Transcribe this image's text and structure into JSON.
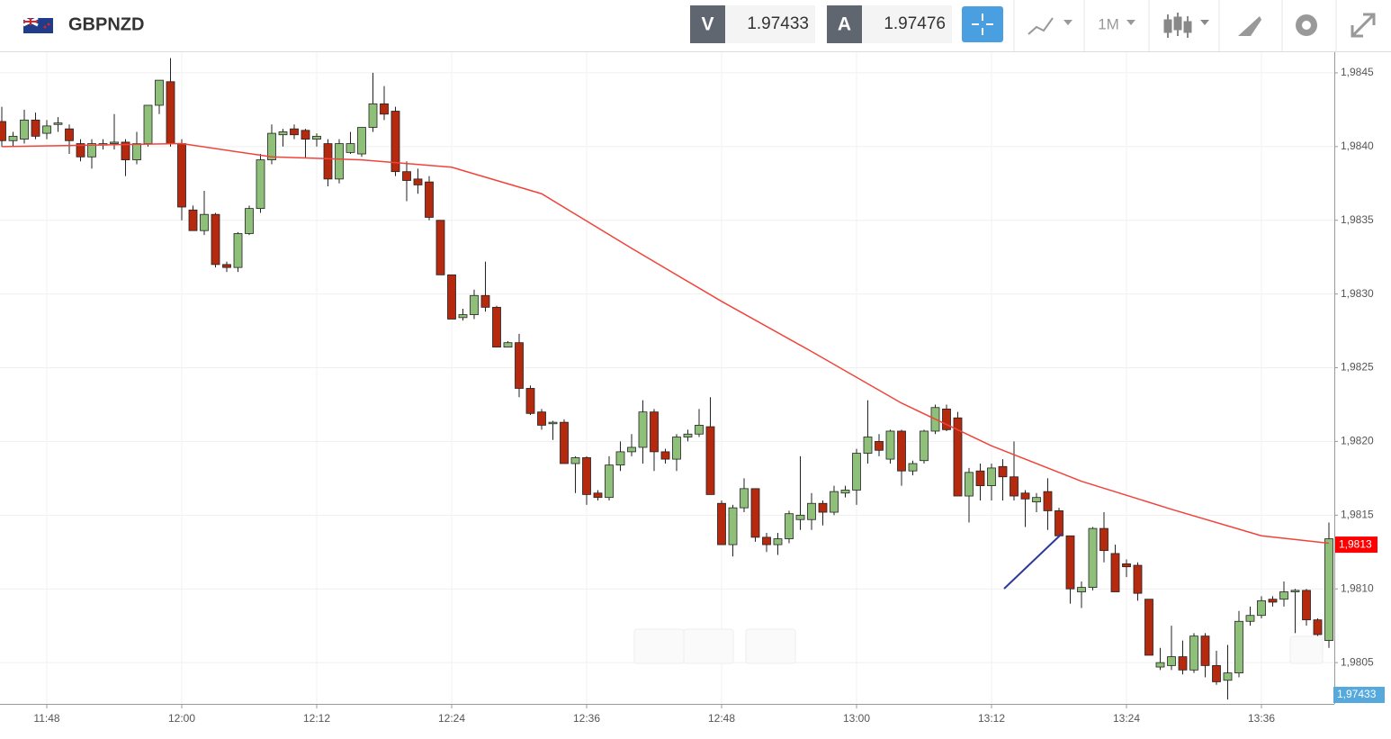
{
  "header": {
    "symbol": "GBPNZD",
    "sell_label": "V",
    "sell_price": "1.97433",
    "buy_label": "A",
    "buy_price": "1.97476",
    "timeframe": "1M"
  },
  "chart_data": {
    "type": "candlestick",
    "categories": [
      null,
      null,
      null,
      null,
      "11:48",
      null,
      null,
      null,
      null,
      null,
      null,
      null,
      null,
      null,
      null,
      null,
      "12:00",
      null,
      null,
      null,
      null,
      null,
      null,
      null,
      null,
      null,
      null,
      null,
      "12:12",
      null,
      null,
      null,
      null,
      null,
      null,
      null,
      null,
      null,
      null,
      null,
      "12:24",
      null,
      null,
      null,
      null,
      null,
      null,
      null,
      null,
      null,
      null,
      null,
      "12:36",
      null,
      null,
      null,
      null,
      null,
      null,
      null,
      null,
      null,
      null,
      null,
      "12:48",
      null,
      null,
      null,
      null,
      null,
      null,
      null,
      null,
      null,
      null,
      null,
      "13:00",
      null,
      null,
      null,
      null,
      null,
      null,
      null,
      null,
      null,
      null,
      null,
      "13:12",
      null,
      null,
      null,
      null,
      null,
      null,
      null,
      null,
      null,
      null,
      null,
      "13:24",
      null,
      null,
      null,
      null,
      null,
      null,
      null,
      null,
      null,
      null,
      null,
      "13:36",
      null,
      null,
      null,
      null,
      null,
      null
    ],
    "open": [
      1.98417,
      1.98404,
      1.98405,
      1.98418,
      1.98409,
      1.98415,
      1.98412,
      1.98402,
      1.98393,
      1.98401,
      1.98402,
      1.98403,
      1.98391,
      1.98402,
      1.98428,
      1.98444,
      1.98402,
      1.98357,
      1.98343,
      1.98354,
      1.9832,
      1.98318,
      1.98341,
      1.98358,
      1.98391,
      1.98408,
      1.98412,
      1.98411,
      1.98405,
      1.98402,
      1.98378,
      1.98396,
      1.98395,
      1.98413,
      1.98429,
      1.98424,
      1.98383,
      1.98378,
      1.98376,
      1.9835,
      1.98313,
      1.98284,
      1.98286,
      1.98299,
      1.98291,
      1.98264,
      1.98267,
      1.98236,
      1.9822,
      1.98212,
      1.98213,
      1.98185,
      1.98189,
      1.98165,
      1.98162,
      1.98184,
      1.98193,
      1.98196,
      1.9822,
      1.98193,
      1.98188,
      1.98203,
      1.98205,
      1.9821,
      1.98158,
      1.9813,
      1.98155,
      1.98168,
      1.98135,
      1.9813,
      1.98134,
      1.98147,
      1.98147,
      1.98158,
      1.98152,
      1.98165,
      1.98167,
      1.98192,
      1.982,
      1.98188,
      1.98207,
      1.9818,
      1.98187,
      1.98207,
      1.98222,
      1.98216,
      1.98163,
      1.9818,
      1.9817,
      1.98183,
      1.98176,
      1.98165,
      1.98159,
      1.98166,
      1.98153,
      1.98136,
      1.98098,
      1.98101,
      1.98141,
      1.98124,
      1.98117,
      1.98116,
      1.98093,
      1.98047,
      1.98048,
      1.98054,
      1.98045,
      1.98068,
      1.98048,
      1.98038,
      1.98043,
      1.98078,
      1.98082,
      1.98093,
      1.98093,
      1.98098,
      1.98099,
      1.98079,
      1.98065
    ],
    "high": [
      1.98427,
      1.9841,
      1.98425,
      1.98423,
      1.98418,
      1.9842,
      1.98415,
      1.98405,
      1.98405,
      1.98405,
      1.98422,
      1.98405,
      1.9841,
      1.98428,
      1.98445,
      1.9846,
      1.98405,
      1.9836,
      1.9837,
      1.98355,
      1.98322,
      1.98342,
      1.9836,
      1.98395,
      1.98415,
      1.98412,
      1.98415,
      1.98412,
      1.98409,
      1.98405,
      1.98405,
      1.9841,
      1.98413,
      1.9845,
      1.98441,
      1.98427,
      1.9839,
      1.98385,
      1.9838,
      1.9835,
      1.98313,
      1.9829,
      1.98303,
      1.98322,
      1.98292,
      1.98268,
      1.98273,
      1.98238,
      1.98222,
      1.98214,
      1.98215,
      1.9819,
      1.9819,
      1.98167,
      1.9819,
      1.982,
      1.98205,
      1.98228,
      1.98222,
      1.98195,
      1.98205,
      1.98208,
      1.98222,
      1.9823,
      1.9816,
      1.98157,
      1.98175,
      1.98168,
      1.98138,
      1.98138,
      1.98153,
      1.9819,
      1.98165,
      1.9816,
      1.9817,
      1.9817,
      1.98195,
      1.98228,
      1.98205,
      1.98208,
      1.98208,
      1.98187,
      1.98208,
      1.98225,
      1.98225,
      1.9822,
      1.98182,
      1.98185,
      1.98185,
      1.98188,
      1.982,
      1.98167,
      1.98165,
      1.98175,
      1.98155,
      1.98136,
      1.98105,
      1.98142,
      1.98152,
      1.9813,
      1.9812,
      1.98118,
      1.98093,
      1.9806,
      1.98075,
      1.98065,
      1.9807,
      1.9807,
      1.98058,
      1.98062,
      1.98085,
      1.98088,
      1.98095,
      1.98095,
      1.98105,
      1.981,
      1.981,
      1.9808,
      1.98145
    ],
    "low": [
      1.984,
      1.984,
      1.98402,
      1.98405,
      1.98405,
      1.9841,
      1.98395,
      1.9839,
      1.98385,
      1.98398,
      1.98398,
      1.9838,
      1.98388,
      1.984,
      1.98422,
      1.984,
      1.9835,
      1.98343,
      1.9834,
      1.98318,
      1.98315,
      1.98315,
      1.9834,
      1.98355,
      1.98388,
      1.984,
      1.98405,
      1.98392,
      1.984,
      1.98373,
      1.98375,
      1.98395,
      1.98393,
      1.9841,
      1.98418,
      1.9838,
      1.98363,
      1.98368,
      1.9835,
      1.98313,
      1.98283,
      1.98282,
      1.98283,
      1.98288,
      1.98264,
      1.98264,
      1.9823,
      1.98218,
      1.98208,
      1.98201,
      1.98185,
      1.98165,
      1.98157,
      1.9816,
      1.9816,
      1.9818,
      1.9819,
      1.98185,
      1.9818,
      1.98185,
      1.9818,
      1.982,
      1.98203,
      1.98164,
      1.9813,
      1.98122,
      1.98152,
      1.98132,
      1.98125,
      1.98123,
      1.98131,
      1.9814,
      1.9814,
      1.98143,
      1.9815,
      1.98162,
      1.98157,
      1.98185,
      1.9819,
      1.98185,
      1.9817,
      1.98177,
      1.98185,
      1.98205,
      1.98207,
      1.98163,
      1.98145,
      1.9816,
      1.9816,
      1.9816,
      1.9816,
      1.98142,
      1.98152,
      1.9814,
      1.98135,
      1.9809,
      1.98087,
      1.98099,
      1.98118,
      1.98098,
      1.98108,
      1.98092,
      1.98055,
      1.98045,
      1.98045,
      1.98042,
      1.98043,
      1.9804,
      1.98035,
      1.98025,
      1.9804,
      1.98075,
      1.9808,
      1.98088,
      1.98088,
      1.9807,
      1.98075,
      1.9806,
      1.9806
    ],
    "close": [
      1.98404,
      1.98407,
      1.98418,
      1.98407,
      1.98414,
      1.98416,
      1.98404,
      1.98393,
      1.98402,
      1.98402,
      1.98403,
      1.98391,
      1.98402,
      1.98428,
      1.98445,
      1.98402,
      1.98359,
      1.98343,
      1.98354,
      1.9832,
      1.98318,
      1.98341,
      1.98358,
      1.98391,
      1.98409,
      1.9841,
      1.98408,
      1.98405,
      1.98407,
      1.98378,
      1.98402,
      1.98402,
      1.98413,
      1.98429,
      1.98422,
      1.98383,
      1.98377,
      1.98374,
      1.98352,
      1.98313,
      1.98283,
      1.98286,
      1.98299,
      1.98291,
      1.98264,
      1.98267,
      1.98236,
      1.98219,
      1.98211,
      1.98213,
      1.98185,
      1.98189,
      1.98164,
      1.98162,
      1.98184,
      1.98193,
      1.98196,
      1.9822,
      1.98193,
      1.98188,
      1.98203,
      1.98205,
      1.98211,
      1.98164,
      1.9813,
      1.98155,
      1.98168,
      1.98135,
      1.9813,
      1.98134,
      1.98151,
      1.9815,
      1.98158,
      1.98152,
      1.98166,
      1.98167,
      1.98192,
      1.98203,
      1.98194,
      1.98207,
      1.9818,
      1.98185,
      1.98207,
      1.98223,
      1.98208,
      1.98163,
      1.98179,
      1.9817,
      1.98182,
      1.98176,
      1.98163,
      1.98161,
      1.98162,
      1.98153,
      1.98136,
      1.981,
      1.98101,
      1.98141,
      1.98126,
      1.98098,
      1.98115,
      1.98097,
      1.98055,
      1.9805,
      1.98054,
      1.98045,
      1.98068,
      1.98048,
      1.98037,
      1.98043,
      1.98078,
      1.98082,
      1.98092,
      1.98091,
      1.98098,
      1.98099,
      1.98079,
      1.98069,
      1.98134
    ],
    "up_color": "#8fc07a",
    "down_color": "#b5290e",
    "moving_average": {
      "color": "#f0443a",
      "x": [
        0,
        8,
        16,
        24,
        32,
        40,
        48,
        56,
        64,
        72,
        80,
        88,
        96,
        104,
        112,
        118
      ],
      "values": [
        1.984,
        1.98401,
        1.98402,
        1.98393,
        1.98391,
        1.98386,
        1.98368,
        1.98331,
        1.98295,
        1.98261,
        1.98226,
        1.98197,
        1.98173,
        1.98154,
        1.98136,
        1.98131
      ]
    },
    "ylim": [
      1.98022,
      1.98464
    ],
    "yticks": [
      {
        "value": 1.9805,
        "label": "1,9805"
      },
      {
        "value": 1.981,
        "label": "1,9810"
      },
      {
        "value": 1.9815,
        "label": "1,9815"
      },
      {
        "value": 1.982,
        "label": "1,9820"
      },
      {
        "value": 1.9825,
        "label": "1,9825"
      },
      {
        "value": 1.983,
        "label": "1,9830"
      },
      {
        "value": 1.9835,
        "label": "1,9835"
      },
      {
        "value": 1.984,
        "label": "1,9840"
      },
      {
        "value": 1.9845,
        "label": "1,9845"
      }
    ],
    "grid": true,
    "last_price": {
      "value": 1.9813,
      "label": "1,9813"
    },
    "bid_price_label": "1,97433"
  }
}
